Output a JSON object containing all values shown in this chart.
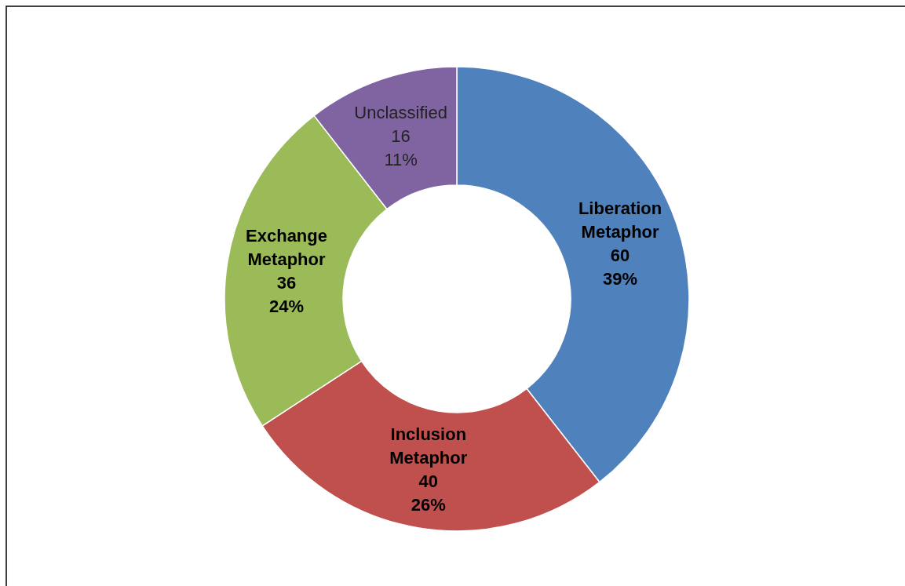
{
  "chart_data": {
    "type": "donut",
    "categories": [
      "Liberation Metaphor",
      "Inclusion Metaphor",
      "Exchange Metaphor",
      "Unclassified"
    ],
    "values": [
      60,
      40,
      36,
      16
    ],
    "colors": [
      "#4f81bd",
      "#c0504d",
      "#9bbb59",
      "#8064a2"
    ],
    "value_labels": [
      "60\n39%",
      "40\n26%",
      "36\n24%",
      "16\n11%"
    ]
  }
}
